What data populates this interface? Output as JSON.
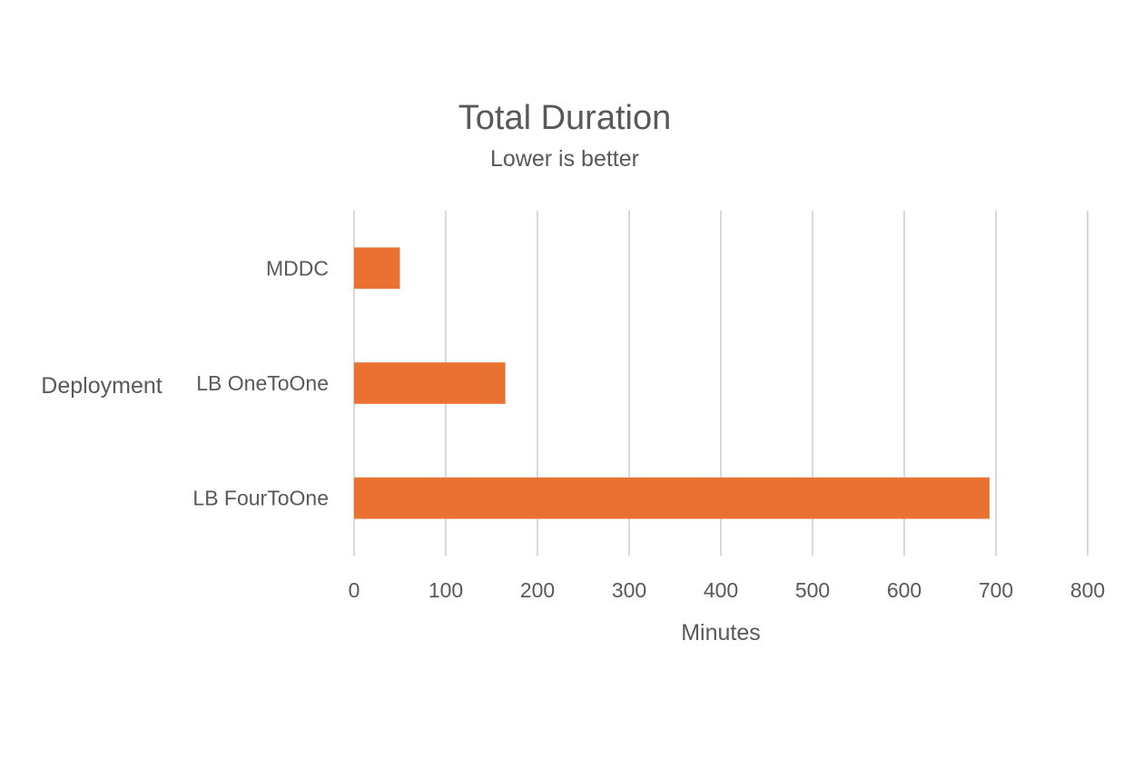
{
  "chart_data": {
    "type": "bar",
    "orientation": "horizontal",
    "title": "Total Duration",
    "subtitle": "Lower is better",
    "xlabel": "Minutes",
    "ylabel": "Deployment",
    "categories": [
      "MDDC",
      "LB OneToOne",
      "LB FourToOne"
    ],
    "values": [
      50,
      165,
      693
    ],
    "xlim": [
      0,
      800
    ],
    "xticks": [
      0,
      100,
      200,
      300,
      400,
      500,
      600,
      700,
      800
    ],
    "grid": "vertical",
    "legend": "none",
    "colors": {
      "bar": "#E97132",
      "grid": "#D9D9D9",
      "text": "#595959"
    }
  }
}
